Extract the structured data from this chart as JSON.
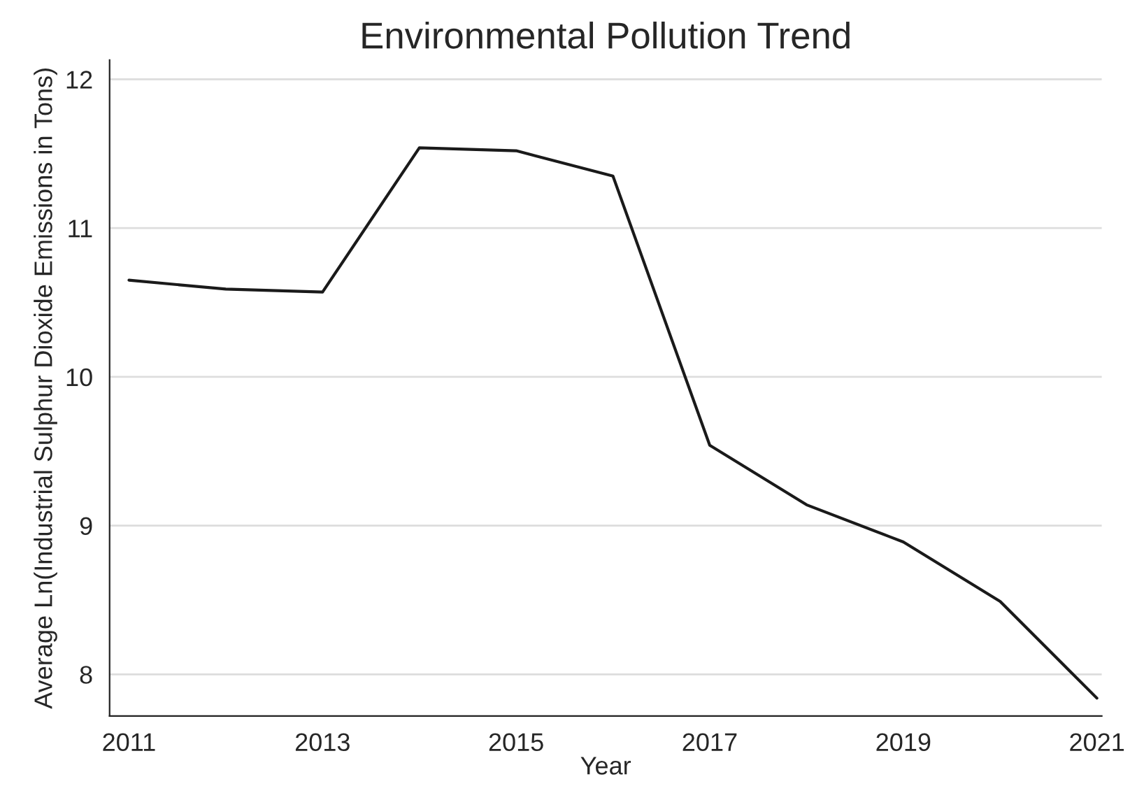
{
  "chart_data": {
    "type": "line",
    "title": "Environmental Pollution Trend",
    "xlabel": "Year",
    "ylabel": "Average Ln(Industrial Sulphur Dioxide Emissions in Tons)",
    "x": [
      2011,
      2012,
      2013,
      2014,
      2015,
      2016,
      2017,
      2018,
      2019,
      2020,
      2021
    ],
    "series": [
      {
        "color": "#1a1a1a",
        "values": [
          10.65,
          10.59,
          10.57,
          11.54,
          11.52,
          11.35,
          9.54,
          9.14,
          8.89,
          8.49,
          7.84
        ]
      }
    ],
    "xlim": [
      2010.8,
      2021.05
    ],
    "ylim": [
      7.72,
      12.13
    ],
    "xticks": [
      2011,
      2013,
      2015,
      2017,
      2019,
      2021
    ],
    "yticks": [
      8,
      9,
      10,
      11,
      12
    ],
    "grid": "y",
    "line_style": "solid",
    "marker": "none"
  }
}
